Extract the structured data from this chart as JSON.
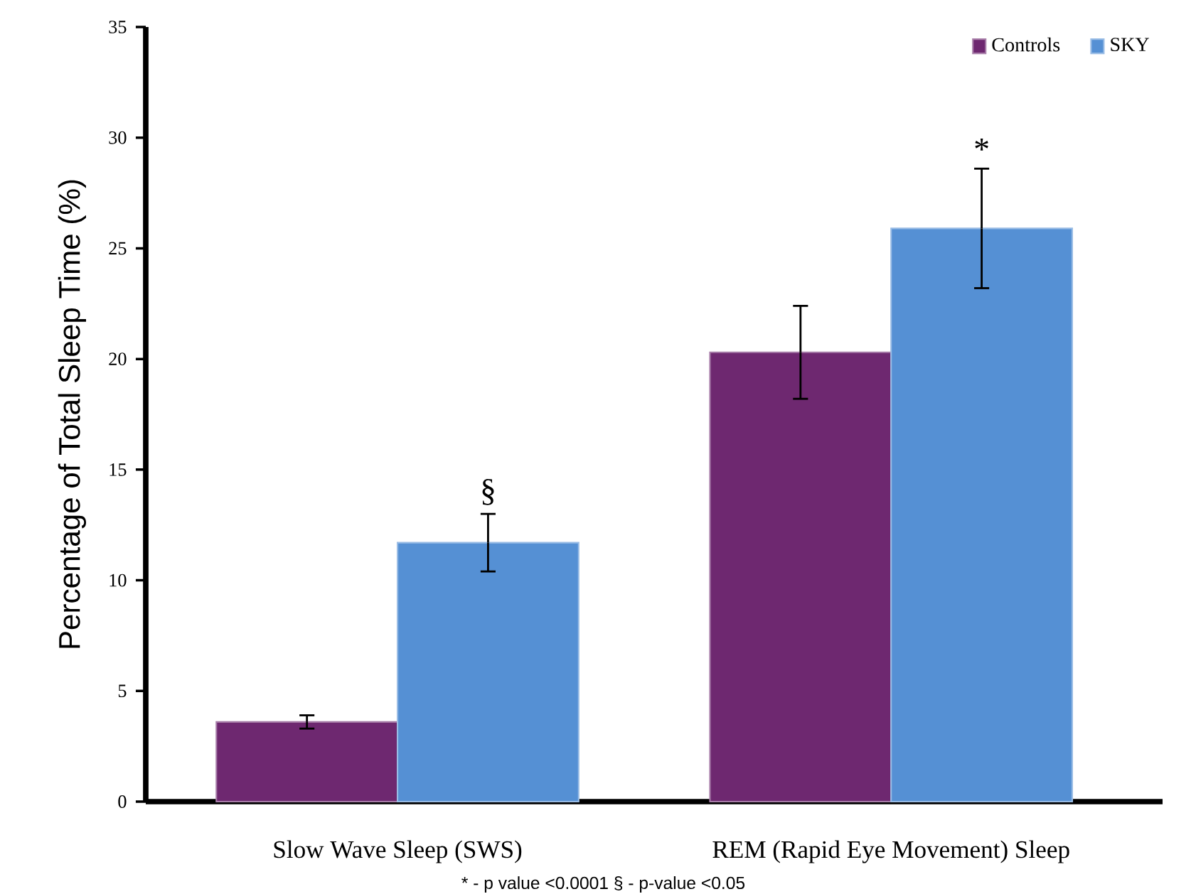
{
  "chart_data": {
    "type": "bar",
    "ylabel": "Percentage of Total Sleep Time (%)",
    "categories": [
      "Slow Wave Sleep (SWS)",
      "REM (Rapid Eye Movement) Sleep"
    ],
    "series": [
      {
        "name": "Controls",
        "color": "#6e2870",
        "values": [
          3.6,
          20.3
        ],
        "errors": [
          0.3,
          2.1
        ]
      },
      {
        "name": "SKY",
        "color": "#5590d4",
        "values": [
          11.7,
          25.9
        ],
        "errors": [
          1.3,
          2.7
        ]
      }
    ],
    "ylim": [
      0,
      35
    ],
    "yticks": [
      0,
      5,
      10,
      15,
      20,
      25,
      30,
      35
    ],
    "grid": false,
    "legend": "top right",
    "annotations": [
      "§",
      "*",
      "* - p value <0.0001 § - p-value <0.05"
    ]
  }
}
